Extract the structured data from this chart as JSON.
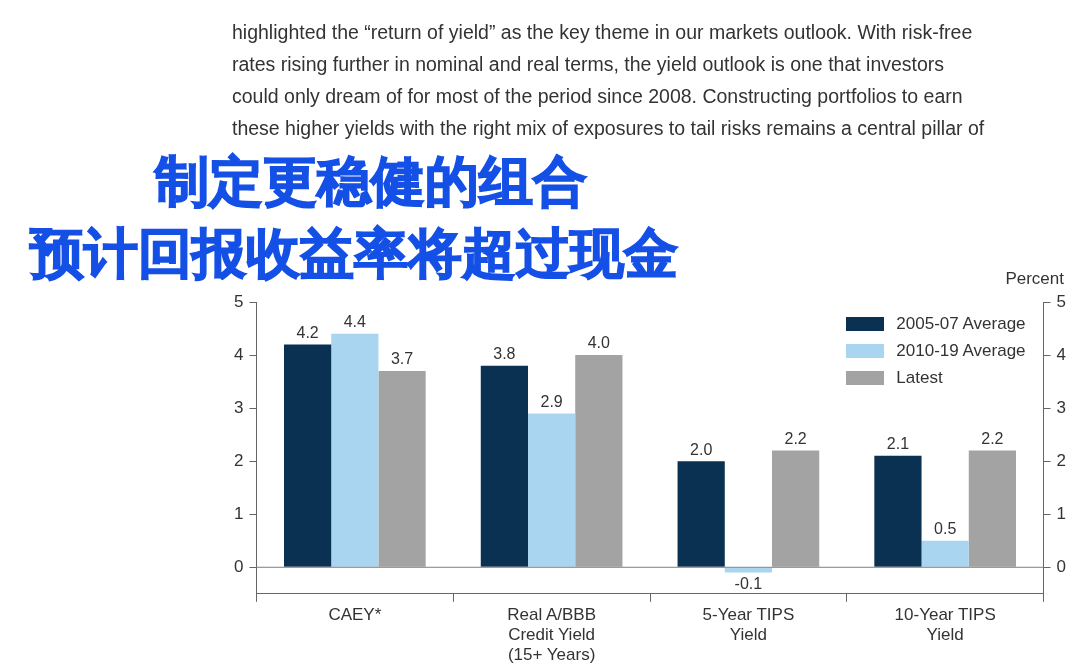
{
  "chart_data": {
    "type": "bar",
    "title": "制定更稳健的组合",
    "subtitle": "预计回报收益率将超过现金",
    "annotations": [
      "highlighted the “return of yield” as the key theme in our markets outlook. With risk-free",
      "rates rising further in nominal and real terms, the yield outlook is one that investors",
      "could only dream of for most of the period since 2008. Constructing portfolios to earn",
      "these higher yields with the right mix of exposures to tail risks remains a central pillar of"
    ],
    "categories": [
      "CAEY*",
      "Real A/BBB Credit Yield (15+ Years)",
      "5-Year TIPS Yield",
      "10-Year TIPS Yield"
    ],
    "series": [
      {
        "name": "2005-07 Average",
        "color": "#0b3152",
        "values": [
          4.2,
          3.8,
          2.0,
          2.1
        ],
        "value_labels": [
          "4.2",
          "3.8",
          "2.0",
          "2.1"
        ]
      },
      {
        "name": "2010-19 Average",
        "color": "#a9d5f0",
        "values": [
          4.4,
          2.9,
          -0.1,
          0.5
        ],
        "value_labels": [
          "4.4",
          "2.9",
          "-0.1",
          "0.5"
        ]
      },
      {
        "name": "Latest",
        "color": "#a3a3a3",
        "values": [
          3.7,
          4.0,
          2.2,
          2.2
        ],
        "value_labels": [
          "3.7",
          "4.0",
          "2.2",
          "2.2"
        ]
      }
    ],
    "ylim": [
      -0.5,
      5
    ],
    "yticks": [
      0,
      1,
      2,
      3,
      4,
      5
    ],
    "y2lim": [
      -0.5,
      5
    ],
    "y2ticks": [
      0,
      1,
      2,
      3,
      4,
      5
    ],
    "y2label": "Percent",
    "ref_lines": [
      {
        "axis": "y",
        "value": 0,
        "color": "#7f7f7f"
      }
    ],
    "grid": false,
    "legend": "top right"
  }
}
